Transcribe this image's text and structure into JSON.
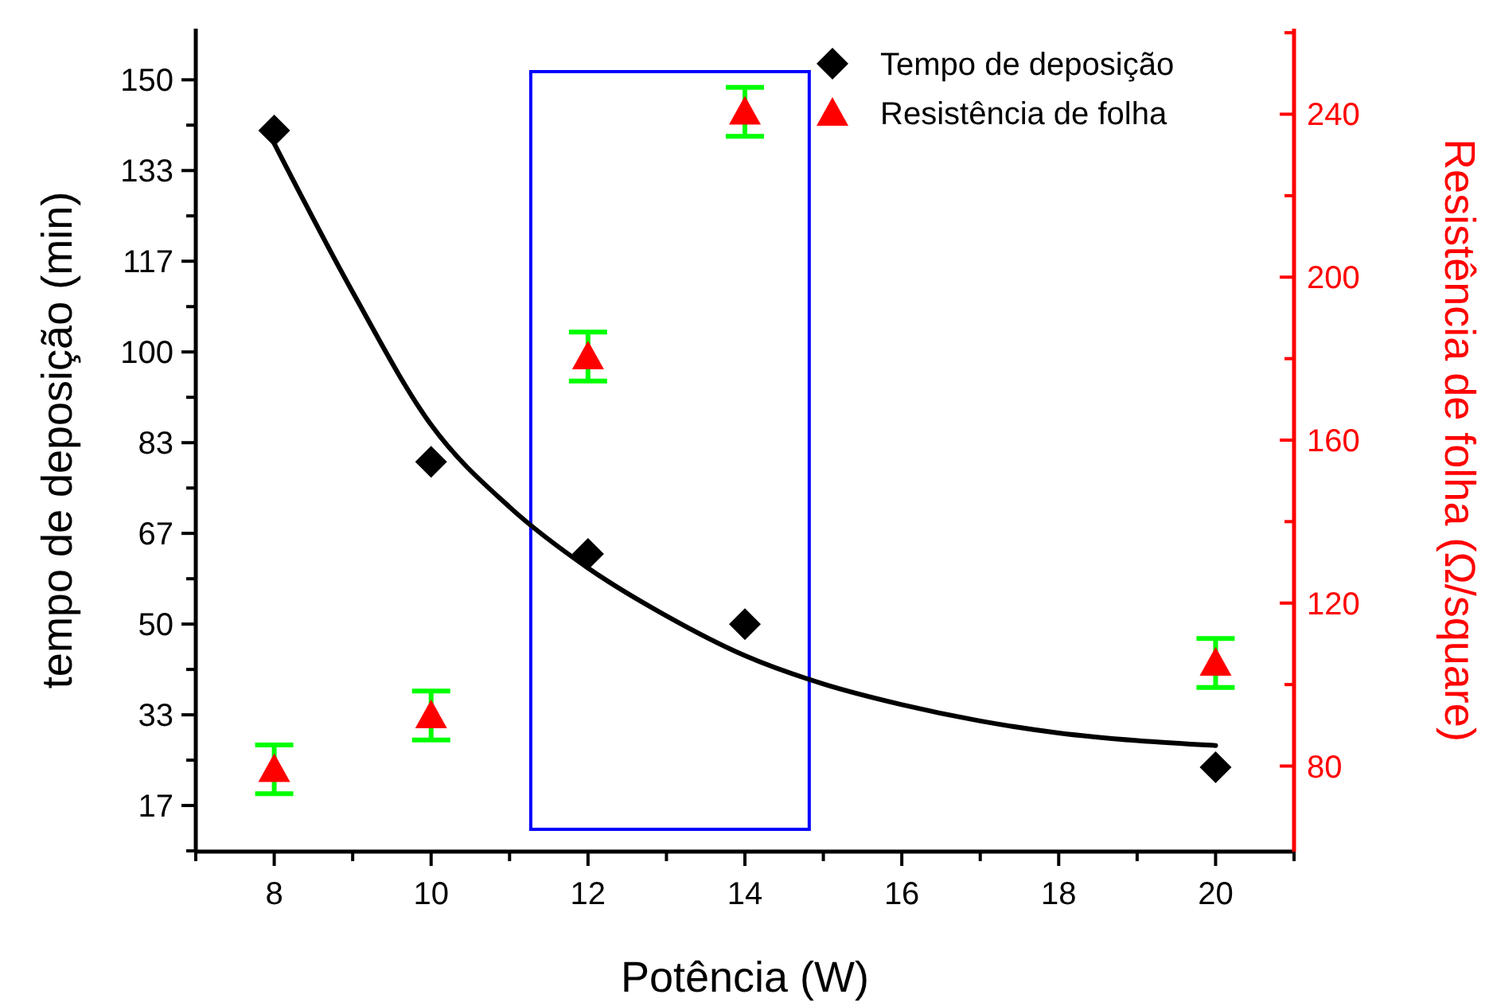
{
  "chart_data": {
    "type": "scatter",
    "xlabel": "Potência (W)",
    "ylabel": "tempo de deposição (min)",
    "y2label": "Resistência de folha (Ω/square)",
    "xlim": [
      7,
      21
    ],
    "xticks": [
      {
        "value": 7,
        "label": null
      },
      8,
      {
        "value": 9,
        "label": null
      },
      10,
      {
        "value": 11,
        "label": null
      },
      12,
      {
        "value": 13,
        "label": null
      },
      14,
      {
        "value": 15,
        "label": null
      },
      16,
      {
        "value": 17,
        "label": null
      },
      18,
      {
        "value": 19,
        "label": null
      },
      20,
      {
        "value": 21,
        "label": null
      }
    ],
    "ylim": [
      8.2,
      159.4
    ],
    "yticks": [
      {
        "value": 8.33,
        "label": null
      },
      {
        "value": 16.67,
        "label": "17"
      },
      {
        "value": 25,
        "label": null
      },
      {
        "value": 33.33,
        "label": "33"
      },
      {
        "value": 41.67,
        "label": null
      },
      50,
      {
        "value": 58.33,
        "label": null
      },
      {
        "value": 66.67,
        "label": "67"
      },
      {
        "value": 75,
        "label": null
      },
      {
        "value": 83.33,
        "label": "83"
      },
      {
        "value": 91.67,
        "label": null
      },
      100,
      {
        "value": 108.33,
        "label": null
      },
      {
        "value": 116.67,
        "label": "117"
      },
      {
        "value": 125,
        "label": null
      },
      {
        "value": 133.33,
        "label": "133"
      },
      {
        "value": 141.67,
        "label": null
      },
      150
    ],
    "y2lim": [
      59,
      261
    ],
    "y2ticks": [
      80,
      {
        "value": 100,
        "label": null
      },
      120,
      {
        "value": 140,
        "label": null
      },
      160,
      {
        "value": 180,
        "label": null
      },
      200,
      {
        "value": 220,
        "label": null
      },
      240,
      {
        "value": 260,
        "label": null
      }
    ],
    "legend": "top right",
    "grid": false,
    "series": [
      {
        "name": "Tempo de deposição",
        "marker": "diamond",
        "color": "#000000",
        "x": [
          8,
          10,
          12,
          14,
          20
        ],
        "values": [
          140.7,
          79.8,
          62.9,
          50,
          23.7
        ]
      },
      {
        "name": "Resistência de folha",
        "marker": "triangle",
        "color": "#ff0000",
        "axis": "y2",
        "x": [
          8,
          10,
          12,
          14,
          20
        ],
        "values": [
          79.2,
          92.4,
          180.5,
          240.6,
          105.3
        ],
        "errors": [
          6,
          6,
          6,
          6,
          6
        ]
      },
      {
        "type": "line",
        "color": "#000000",
        "x": [
          8,
          9,
          10,
          11,
          12,
          13,
          14,
          15,
          16,
          17,
          18,
          19,
          20
        ],
        "values": [
          138.3,
          111,
          86.6,
          71.5,
          60.3,
          51.5,
          44.2,
          39,
          35.2,
          32.2,
          30,
          28.6,
          27.7
        ]
      }
    ]
  }
}
